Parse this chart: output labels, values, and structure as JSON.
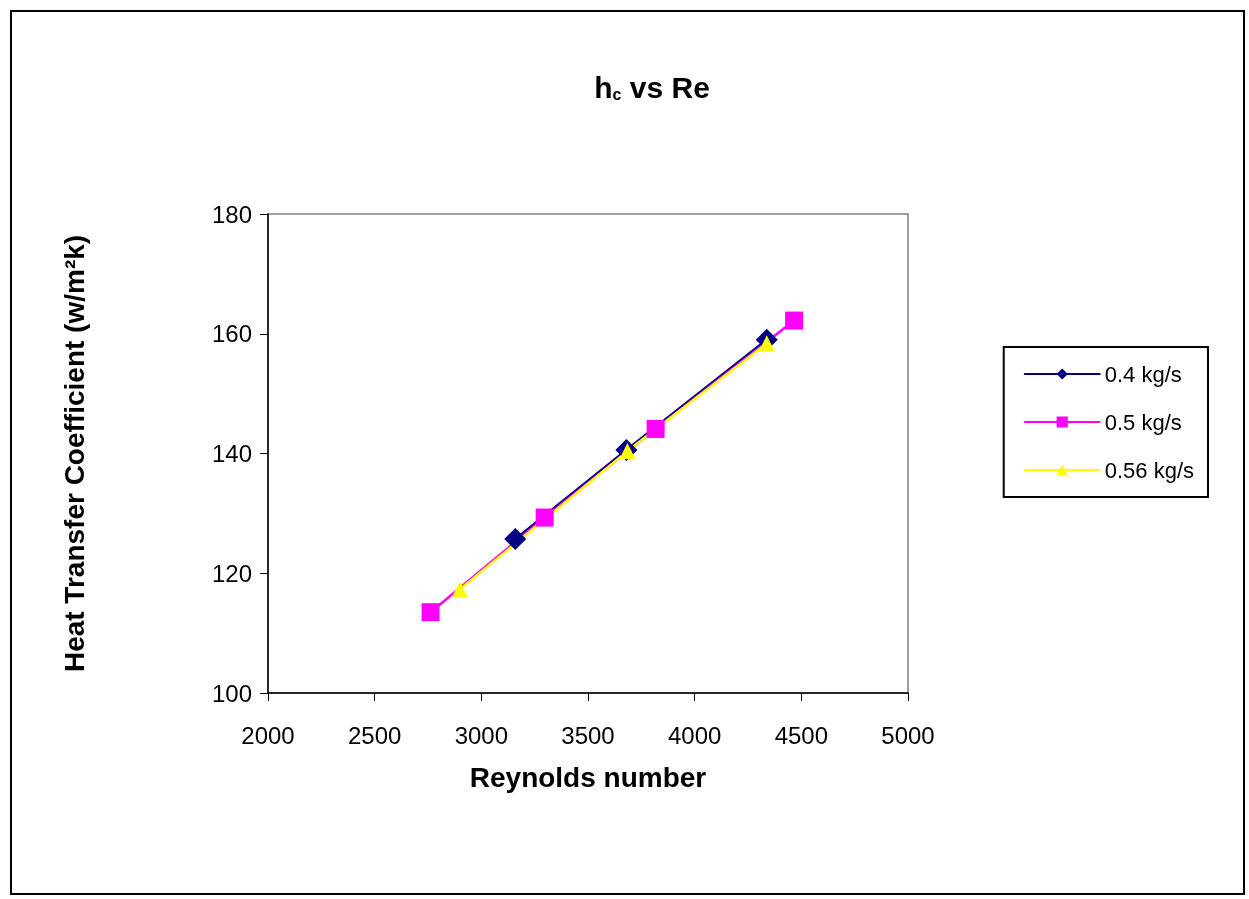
{
  "chart_data": {
    "type": "line",
    "title": "h$_{c}$ vs Re",
    "xlabel": "Reynolds number",
    "ylabel": "Heat Transfer Coefficient (w/m²k)",
    "xlim": [
      2000,
      5000
    ],
    "xticks": [
      2000,
      2500,
      3000,
      3500,
      4000,
      4500,
      5000
    ],
    "ylim": [
      100,
      180
    ],
    "yticks": [
      100,
      120,
      140,
      160,
      180
    ],
    "grid": false,
    "legend": "right",
    "series": [
      {
        "name": "0.4 kg/s",
        "color": "#000080",
        "marker": "diamond",
        "x": [
          3159,
          3680,
          4338
        ],
        "values": [
          125.7,
          140.6,
          159
        ]
      },
      {
        "name": "0.5 kg/s",
        "color": "#ff00ff",
        "marker": "square",
        "x": [
          2762,
          3297,
          3817,
          4466
        ],
        "values": [
          113.5,
          129.3,
          144.1,
          162.2
        ]
      },
      {
        "name": "0.56 kg/s",
        "color": "#ffff00",
        "marker": "triangle",
        "x": [
          2899,
          3685,
          4338
        ],
        "values": [
          117.3,
          140.4,
          158.4
        ]
      }
    ]
  }
}
